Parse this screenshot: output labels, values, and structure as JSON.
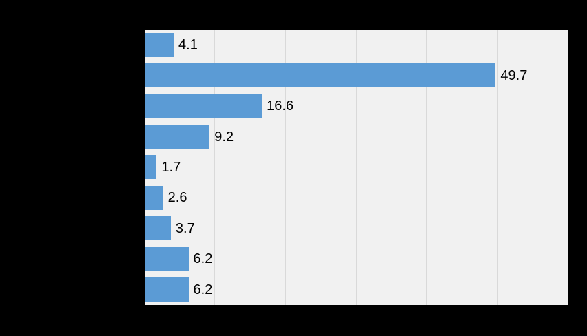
{
  "page": {
    "background_color": "#000000"
  },
  "chart_data": {
    "type": "bar",
    "orientation": "horizontal",
    "title": "",
    "xlabel": "",
    "ylabel": "",
    "categories": [
      "",
      "",
      "",
      "",
      "",
      "",
      "",
      "",
      ""
    ],
    "values": [
      4.1,
      49.7,
      16.6,
      9.2,
      1.7,
      2.6,
      3.7,
      6.2,
      6.2
    ],
    "data_labels": [
      "4.1",
      "49.7",
      "16.6",
      "9.2",
      "1.7",
      "2.6",
      "3.7",
      "6.2",
      "6.2"
    ],
    "xlim": [
      0,
      60
    ],
    "gridline_values": [
      10,
      20,
      30,
      40,
      50,
      60
    ],
    "grid": true,
    "legend": false,
    "colors": {
      "bar": "#5b9bd5",
      "plot_background": "#f1f1f1",
      "gridline": "#d9d9d9",
      "data_label": "#000000",
      "page_background": "#000000"
    }
  }
}
